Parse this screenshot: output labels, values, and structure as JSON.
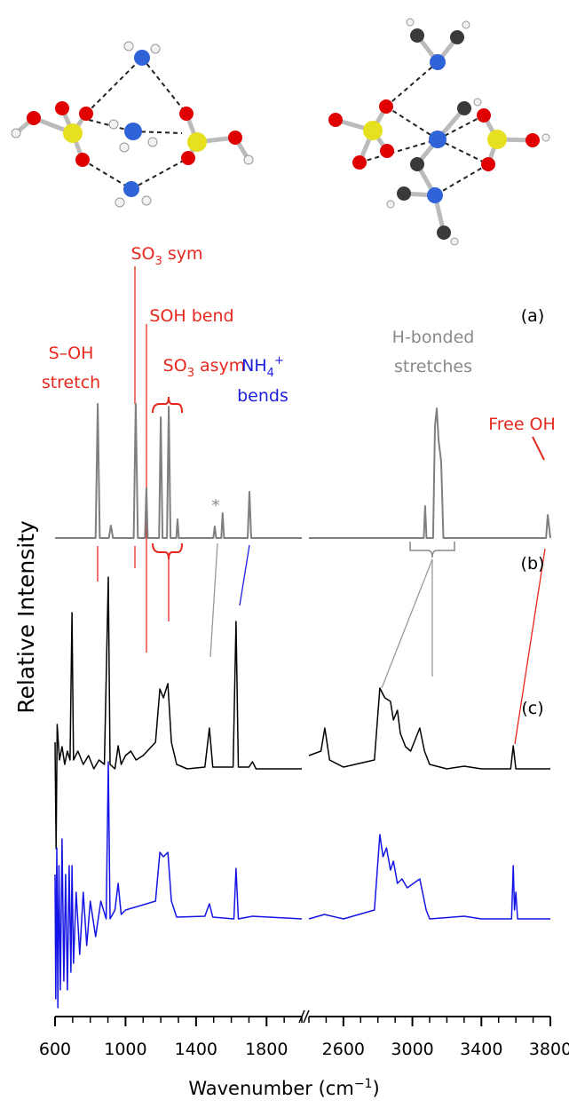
{
  "chart_data": {
    "type": "line",
    "ylabel": "Relative Intensity",
    "xlabel": [
      "Wavenumber (cm",
      "−1",
      ")"
    ],
    "panel_labels": [
      "(a)",
      "(b)",
      "(c)"
    ],
    "annotations": {
      "s_oh": [
        "S–OH",
        "stretch"
      ],
      "so3_sym": [
        "SO",
        "3",
        " sym"
      ],
      "soh_bend": "SOH bend",
      "so3_asym": [
        "SO",
        "3",
        " asym"
      ],
      "h_bonded": [
        "H-bonded",
        "stretches"
      ],
      "nh4": [
        "NH",
        "4",
        "+",
        "bends"
      ],
      "free_oh": "Free OH",
      "asterisk": "*"
    },
    "segments": [
      {
        "xlim": [
          600,
          2000
        ],
        "xticks": [
          600,
          1000,
          1400,
          1800
        ],
        "xminorticks": [
          700,
          800,
          900,
          1100,
          1200,
          1300,
          1500,
          1600,
          1700,
          1900,
          2000
        ]
      },
      {
        "xlim": [
          2400,
          3800
        ],
        "xticks": [
          2600,
          3000,
          3400,
          3800
        ],
        "xminorticks": [
          2400,
          2500,
          2700,
          2800,
          2900,
          3100,
          3200,
          3300,
          3500,
          3600,
          3700
        ]
      }
    ],
    "series": [
      {
        "color": "#7f7f7f",
        "x": [
          600,
          830,
          842,
          854,
          905,
          917,
          929,
          1046,
          1058,
          1070,
          1110,
          1118,
          1126,
          1190,
          1200,
          1210,
          1235,
          1245,
          1255,
          1288,
          1295,
          1302,
          1498,
          1506,
          1514,
          1543,
          1551,
          1559,
          1693,
          1703,
          1713,
          2000,
          2200,
          2400,
          3066,
          3074,
          3082,
          3120,
          3131,
          3141,
          3152,
          3167,
          3180,
          3775,
          3785,
          3800
        ],
        "values": [
          0,
          0,
          1.51,
          0,
          0,
          0.14,
          0,
          0,
          1.51,
          0,
          0,
          0.56,
          0,
          0,
          1.36,
          0,
          0,
          1.48,
          0,
          0,
          0.21,
          0,
          0,
          0.13,
          0,
          0,
          0.28,
          0,
          0,
          0.52,
          0,
          0,
          null,
          0,
          0,
          0.36,
          0,
          0,
          1.26,
          1.46,
          1.1,
          0.86,
          0,
          0,
          0.26,
          0
        ]
      },
      {
        "color": "#000000",
        "x": [
          600,
          606,
          612,
          625,
          640,
          655,
          670,
          685,
          696,
          705,
          730,
          760,
          790,
          820,
          850,
          880,
          902,
          912,
          940,
          958,
          975,
          1000,
          1030,
          1060,
          1100,
          1170,
          1195,
          1215,
          1240,
          1260,
          1290,
          1350,
          1450,
          1476,
          1495,
          1610,
          1627,
          1640,
          1700,
          1720,
          1740,
          2000,
          2200,
          2400,
          2470,
          2492,
          2520,
          2600,
          2780,
          2811,
          2840,
          2873,
          2890,
          2913,
          2930,
          2960,
          2990,
          3043,
          3070,
          3100,
          3200,
          3300,
          3400,
          3570,
          3585,
          3600,
          3800
        ],
        "values": [
          0.3,
          -0.9,
          0.5,
          0.1,
          0.25,
          0.05,
          0.2,
          0.1,
          1.76,
          0.1,
          0.2,
          0.05,
          0.15,
          0,
          0.1,
          0.05,
          2.16,
          0.05,
          0,
          0.26,
          0.05,
          0.15,
          0.2,
          0.1,
          0.15,
          0.3,
          0.9,
          0.8,
          0.96,
          0.3,
          0.05,
          0,
          0.02,
          0.46,
          0.02,
          0.02,
          1.66,
          0.02,
          0.02,
          0.08,
          0,
          0,
          null,
          0.15,
          0.2,
          0.46,
          0.1,
          0.02,
          0.1,
          0.91,
          0.8,
          0.76,
          0.55,
          0.66,
          0.4,
          0.25,
          0.2,
          0.46,
          0.2,
          0.05,
          0,
          0.03,
          0,
          0,
          0.26,
          0,
          0
        ]
      },
      {
        "color": "#1414e6",
        "x": [
          600,
          604,
          610,
          616,
          622,
          630,
          640,
          650,
          660,
          670,
          680,
          690,
          696,
          705,
          720,
          740,
          760,
          780,
          800,
          830,
          860,
          890,
          902,
          912,
          940,
          958,
          975,
          1000,
          1170,
          1195,
          1215,
          1240,
          1260,
          1290,
          1450,
          1476,
          1495,
          1615,
          1627,
          1640,
          1720,
          2000,
          2200,
          2400,
          2490,
          2600,
          2780,
          2811,
          2830,
          2850,
          2873,
          2890,
          2913,
          2940,
          2970,
          3043,
          3080,
          3100,
          3300,
          3400,
          3575,
          3585,
          3592,
          3600,
          3610,
          3800
        ],
        "values": [
          0.5,
          -0.9,
          0.8,
          -1.0,
          0.6,
          -0.8,
          0.9,
          -0.7,
          0.5,
          -0.8,
          0.6,
          -0.6,
          0.6,
          -0.5,
          0.3,
          -0.4,
          0.3,
          -0.3,
          0.2,
          -0.2,
          0.2,
          0,
          1.77,
          0,
          0.1,
          0.4,
          0.05,
          0.1,
          0.2,
          0.75,
          0.7,
          0.75,
          0.2,
          0.02,
          0.03,
          0.17,
          0.02,
          0,
          0.57,
          0,
          0.03,
          0,
          null,
          0,
          0.05,
          0,
          0.1,
          0.95,
          0.7,
          0.8,
          0.55,
          0.65,
          0.4,
          0.45,
          0.35,
          0.45,
          0.1,
          0,
          0.03,
          0,
          0,
          0.6,
          0.1,
          0.3,
          0,
          0
        ]
      }
    ]
  }
}
